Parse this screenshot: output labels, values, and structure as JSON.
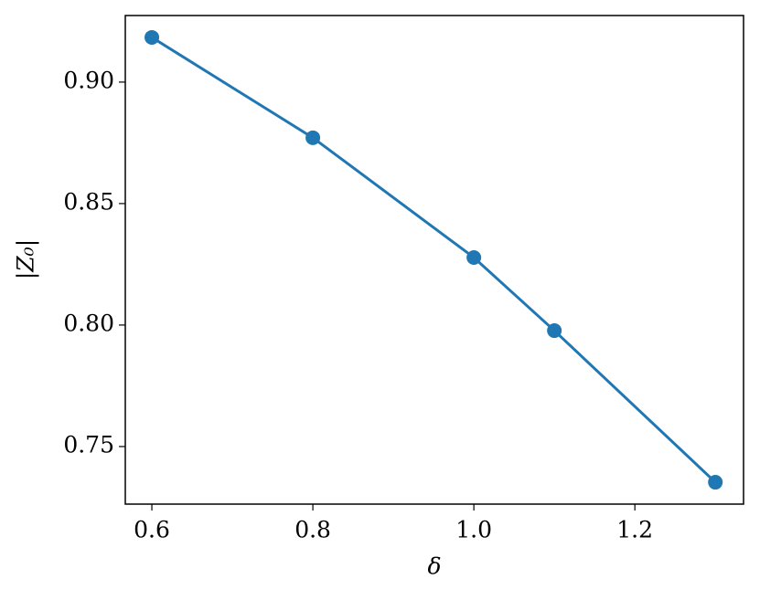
{
  "chart_data": {
    "type": "line",
    "x_label": "δ",
    "y_label": "|Z₀|",
    "x": [
      0.6,
      0.8,
      1.0,
      1.1,
      1.3
    ],
    "series": [
      {
        "color": "#1f77b4",
        "values": [
          0.9184,
          0.8771,
          0.8278,
          0.7977,
          0.7353
        ]
      }
    ],
    "xlim": [
      0.567,
      1.335
    ],
    "ylim": [
      0.7263,
      0.9274
    ],
    "xticks": [
      0.6,
      0.8,
      {
        "value": 1.0,
        "label": "1.0"
      },
      1.2
    ],
    "yticks": [
      {
        "value": 0.75,
        "label": "0.75"
      },
      {
        "value": 0.8,
        "label": "0.80"
      },
      {
        "value": 0.85,
        "label": "0.85"
      },
      {
        "value": 0.9,
        "label": "0.90"
      }
    ],
    "markers": true
  }
}
